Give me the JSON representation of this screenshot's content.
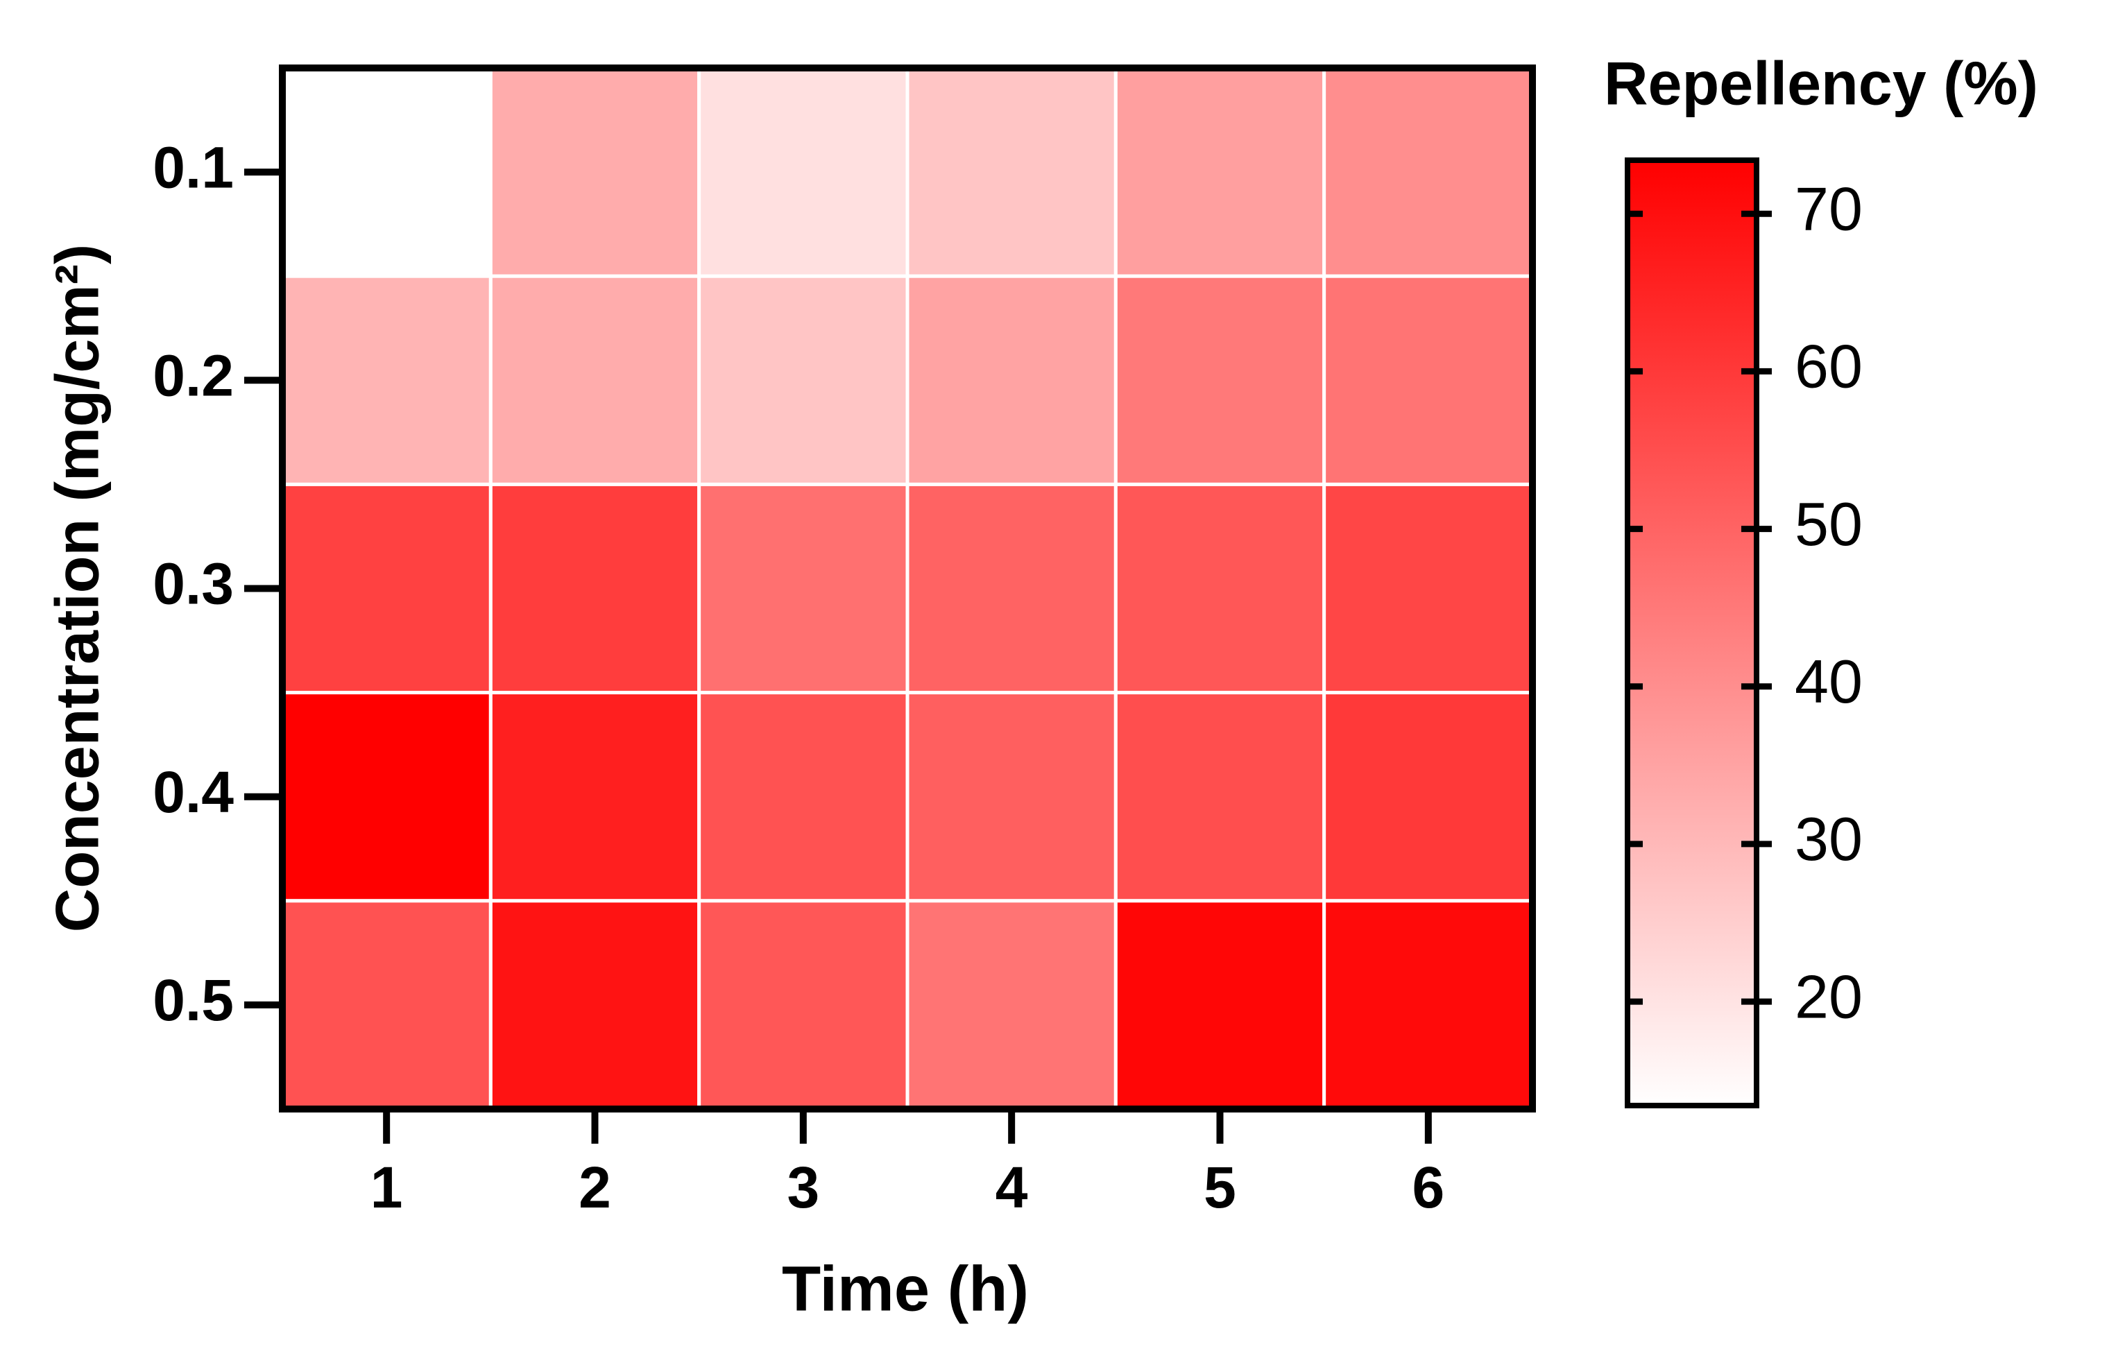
{
  "chart_data": {
    "type": "heatmap",
    "x_label": "Time (h)",
    "y_label": "Concentration (mg/cm²)",
    "colorbar_title": "Repellency  (%)",
    "x_categories": [
      "1",
      "2",
      "3",
      "4",
      "5",
      "6"
    ],
    "y_categories": [
      "0.1",
      "0.2",
      "0.3",
      "0.4",
      "0.5"
    ],
    "values": [
      [
        13.4,
        33,
        20.6,
        27,
        36,
        40
      ],
      [
        31,
        33,
        27,
        35,
        45,
        46
      ],
      [
        58,
        59,
        47,
        50,
        53,
        57
      ],
      [
        73.4,
        66,
        54,
        51,
        55,
        60
      ],
      [
        54,
        69,
        53,
        46,
        72,
        71
      ]
    ],
    "colormap": [
      "#ffffff",
      "#ff0000"
    ],
    "clim": [
      13.4,
      73.4
    ],
    "cticks": [
      20,
      30,
      40,
      50,
      60,
      70
    ],
    "cell_border_color": "#ffffff"
  }
}
